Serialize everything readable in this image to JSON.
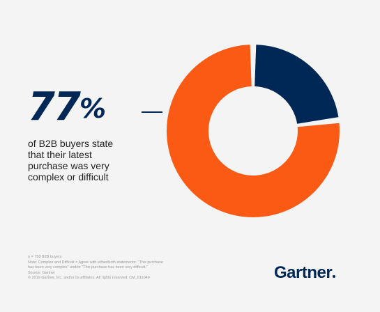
{
  "headline": {
    "value": "77",
    "suffix": "%",
    "caption_lines": [
      "of B2B buyers state",
      "that their latest",
      "purchase was very",
      "complex or difficult"
    ]
  },
  "chart_data": {
    "type": "pie",
    "style": "donut",
    "values": [
      77,
      23
    ],
    "colors": [
      "#fa5a14",
      "#002856"
    ],
    "title": "",
    "legend": "none"
  },
  "footnotes": [
    "n = 750 B2B buyers",
    "Note: Complex and Difficult = Agree with either/both statements: \"This purchase",
    "has been very complex\" and/or \"This purchase has been very difficult.\"",
    "Source: Gartner",
    "© 2019 Gartner, Inc. and/or its affiliates. All rights reserved. CM_611049"
  ],
  "brand": {
    "logo_text": "Gartner",
    "color": "#002856"
  }
}
